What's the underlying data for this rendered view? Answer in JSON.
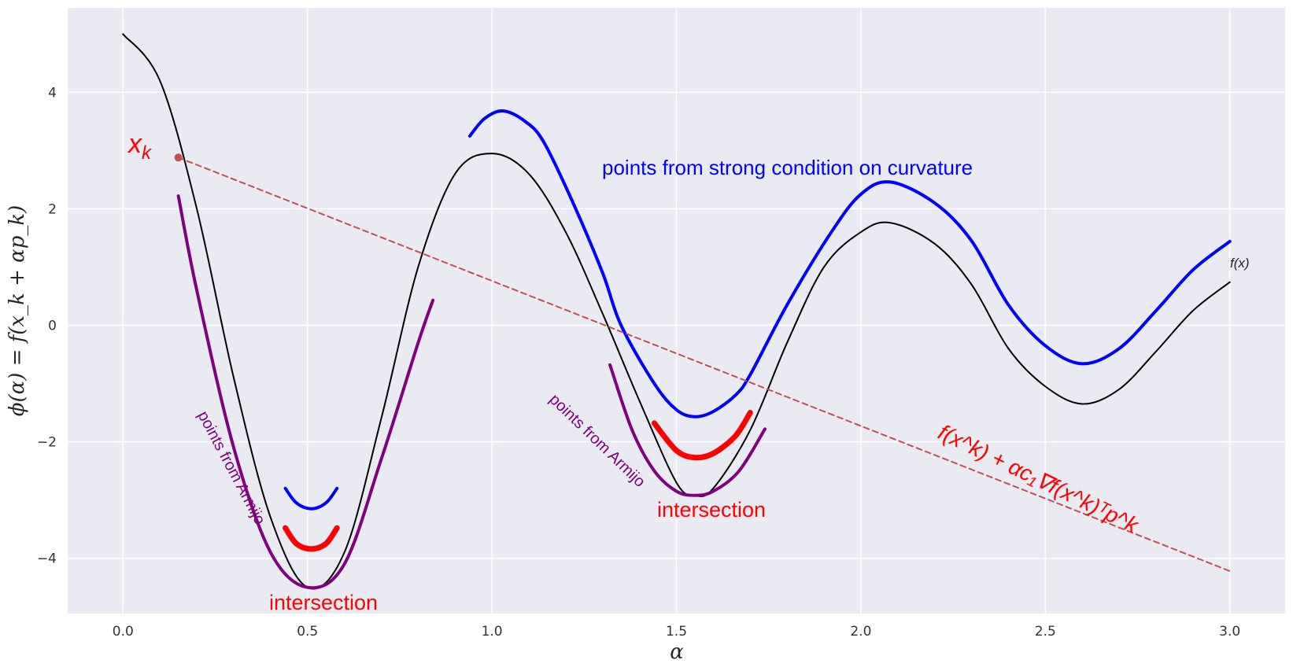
{
  "chart_data": {
    "type": "line",
    "title": "",
    "xlabel": "α",
    "ylabel": "ϕ(α) = f(x_k + αp_k)",
    "xlim": [
      -0.15,
      3.15
    ],
    "ylim": [
      -4.95,
      5.45
    ],
    "xticks": [
      0.0,
      0.5,
      1.0,
      1.5,
      2.0,
      2.5,
      3.0
    ],
    "xtick_labels": [
      "0.0",
      "0.5",
      "1.0",
      "1.5",
      "2.0",
      "2.5",
      "3.0"
    ],
    "yticks": [
      -4,
      -2,
      0,
      2,
      4
    ],
    "ytick_labels": [
      "−4",
      "−2",
      "0",
      "2",
      "4"
    ],
    "grid": true,
    "background_color": "#eaeaf2",
    "series": [
      {
        "name": "f(x)",
        "color": "#000000",
        "points": [
          [
            0.0,
            5.0
          ],
          [
            0.1,
            4.2
          ],
          [
            0.2,
            2.0
          ],
          [
            0.3,
            -0.9
          ],
          [
            0.4,
            -3.3
          ],
          [
            0.5,
            -4.5
          ],
          [
            0.6,
            -3.9
          ],
          [
            0.7,
            -1.6
          ],
          [
            0.8,
            1.0
          ],
          [
            0.9,
            2.6
          ],
          [
            1.0,
            2.95
          ],
          [
            1.1,
            2.6
          ],
          [
            1.2,
            1.6
          ],
          [
            1.3,
            0.2
          ],
          [
            1.4,
            -1.3
          ],
          [
            1.5,
            -2.7
          ],
          [
            1.55,
            -2.92
          ],
          [
            1.6,
            -2.8
          ],
          [
            1.7,
            -1.8
          ],
          [
            1.8,
            -0.3
          ],
          [
            1.9,
            1.0
          ],
          [
            2.0,
            1.6
          ],
          [
            2.08,
            1.76
          ],
          [
            2.2,
            1.4
          ],
          [
            2.3,
            0.7
          ],
          [
            2.4,
            -0.4
          ],
          [
            2.5,
            -1.05
          ],
          [
            2.6,
            -1.35
          ],
          [
            2.7,
            -1.1
          ],
          [
            2.8,
            -0.45
          ],
          [
            2.9,
            0.25
          ],
          [
            3.0,
            0.74
          ]
        ]
      },
      {
        "name": "points from strong condition on curvature",
        "color": "#0000ff",
        "segments": [
          [
            [
              0.44,
              -2.8
            ],
            [
              0.47,
              -3.05
            ],
            [
              0.51,
              -3.15
            ],
            [
              0.55,
              -3.05
            ],
            [
              0.58,
              -2.8
            ]
          ],
          [
            [
              0.94,
              3.25
            ],
            [
              0.98,
              3.55
            ],
            [
              1.03,
              3.68
            ],
            [
              1.09,
              3.5
            ],
            [
              1.14,
              3.15
            ],
            [
              1.22,
              2.1
            ],
            [
              1.3,
              0.9
            ],
            [
              1.35,
              0.0
            ],
            [
              1.44,
              -1.0
            ],
            [
              1.5,
              -1.45
            ],
            [
              1.55,
              -1.57
            ],
            [
              1.6,
              -1.48
            ],
            [
              1.66,
              -1.2
            ],
            [
              1.7,
              -0.85
            ],
            [
              1.8,
              0.35
            ],
            [
              1.92,
              1.6
            ],
            [
              2.0,
              2.25
            ],
            [
              2.08,
              2.46
            ],
            [
              2.2,
              2.1
            ],
            [
              2.3,
              1.45
            ],
            [
              2.4,
              0.35
            ],
            [
              2.5,
              -0.35
            ],
            [
              2.6,
              -0.66
            ],
            [
              2.7,
              -0.4
            ],
            [
              2.8,
              0.25
            ],
            [
              2.9,
              0.95
            ],
            [
              3.0,
              1.44
            ]
          ]
        ]
      },
      {
        "name": "points from Armijo",
        "color": "#800080",
        "segments": [
          [
            [
              0.15,
              2.22
            ],
            [
              0.2,
              0.6
            ],
            [
              0.3,
              -2.1
            ],
            [
              0.4,
              -3.9
            ],
            [
              0.5,
              -4.5
            ],
            [
              0.6,
              -4.1
            ],
            [
              0.7,
              -2.3
            ],
            [
              0.8,
              -0.3
            ],
            [
              0.84,
              0.43
            ]
          ],
          [
            [
              1.32,
              -0.68
            ],
            [
              1.38,
              -1.8
            ],
            [
              1.44,
              -2.5
            ],
            [
              1.5,
              -2.85
            ],
            [
              1.55,
              -2.92
            ],
            [
              1.6,
              -2.85
            ],
            [
              1.67,
              -2.5
            ],
            [
              1.74,
              -1.78
            ]
          ]
        ]
      },
      {
        "name": "intersection",
        "color": "#ff0000",
        "segments": [
          [
            [
              0.44,
              -3.48
            ],
            [
              0.47,
              -3.75
            ],
            [
              0.51,
              -3.84
            ],
            [
              0.55,
              -3.75
            ],
            [
              0.58,
              -3.48
            ]
          ],
          [
            [
              1.44,
              -1.68
            ],
            [
              1.5,
              -2.15
            ],
            [
              1.55,
              -2.27
            ],
            [
              1.6,
              -2.2
            ],
            [
              1.66,
              -1.9
            ],
            [
              1.7,
              -1.5
            ]
          ]
        ]
      },
      {
        "name": "f(x^k) + αc₁∇f(x^k)ᵀp^k",
        "color": "#c44e52",
        "style": "dashed",
        "points": [
          [
            0.15,
            2.88
          ],
          [
            3.0,
            -4.22
          ]
        ]
      }
    ],
    "marker": {
      "label": "x_k",
      "x": 0.15,
      "y": 2.88,
      "color": "#c44e52"
    }
  },
  "annotations": {
    "xk_label": "x",
    "xk_sub": "k",
    "strong_curv": "points from strong condition on curvature",
    "armijo_1": "points from Armijo",
    "armijo_2": "points from Armijo",
    "intersection_1": "intersection",
    "intersection_2": "intersection",
    "fx_label": "f(x)",
    "armijo_line_label": "f(x^k) + αc₁∇f(x^k)ᵀp^k"
  }
}
